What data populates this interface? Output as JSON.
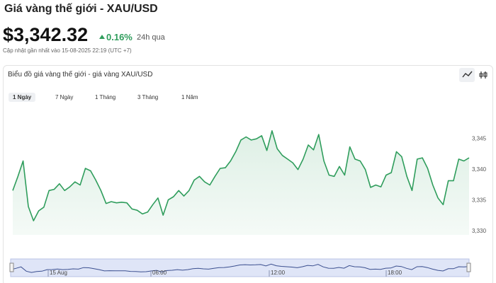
{
  "header": {
    "title": "Giá vàng thế giới - XAU/USD",
    "price": "$3,342.32",
    "change": "0.16%",
    "change_period": "24h qua",
    "updated": "Cập nhật gần nhất vào 15-08-2025 22:19 (UTC +7)"
  },
  "chart_data": {
    "type": "line",
    "title": "Biểu đồ giá vàng thế giới - giá vàng XAU/USD",
    "tabs": [
      "1 Ngày",
      "7 Ngày",
      "1 Tháng",
      "3 Tháng",
      "1 Năm"
    ],
    "color": "#2f9d5c",
    "values": [
      3336.6,
      3338.9,
      3341.4,
      3334.0,
      3331.7,
      3333.3,
      3333.9,
      3336.6,
      3336.8,
      3337.7,
      3336.6,
      3337.2,
      3338.0,
      3337.5,
      3340.2,
      3339.8,
      3338.3,
      3336.6,
      3334.5,
      3334.8,
      3334.6,
      3334.7,
      3334.6,
      3333.6,
      3333.4,
      3332.8,
      3333.1,
      3334.3,
      3335.4,
      3332.6,
      3335.1,
      3335.6,
      3336.6,
      3335.7,
      3336.6,
      3338.3,
      3338.9,
      3338.0,
      3337.5,
      3338.9,
      3340.2,
      3340.3,
      3341.4,
      3342.9,
      3344.8,
      3345.3,
      3344.8,
      3345.0,
      3345.5,
      3343.1,
      3346.3,
      3343.4,
      3342.3,
      3341.7,
      3341.1,
      3340.0,
      3341.7,
      3344.0,
      3343.2,
      3345.7,
      3341.4,
      3339.1,
      3338.9,
      3340.5,
      3339.1,
      3343.7,
      3341.7,
      3341.4,
      3340.0,
      3337.1,
      3337.5,
      3337.2,
      3339.1,
      3339.5,
      3342.9,
      3342.1,
      3338.9,
      3336.6,
      3341.7,
      3341.9,
      3340.2,
      3337.5,
      3335.4,
      3334.3,
      3338.2,
      3338.2,
      3341.7,
      3341.4,
      3341.9
    ],
    "ylim": [
      3329.4,
      3350.3
    ],
    "yticks": [
      {
        "value": 3330,
        "label": "3,330"
      },
      {
        "value": 3335,
        "label": "3,335"
      },
      {
        "value": 3340,
        "label": "3,340"
      },
      {
        "value": 3345,
        "label": "3,345"
      }
    ],
    "navigator_labels": [
      "15 Aug",
      "06:00",
      "12:00",
      "18:00"
    ]
  }
}
